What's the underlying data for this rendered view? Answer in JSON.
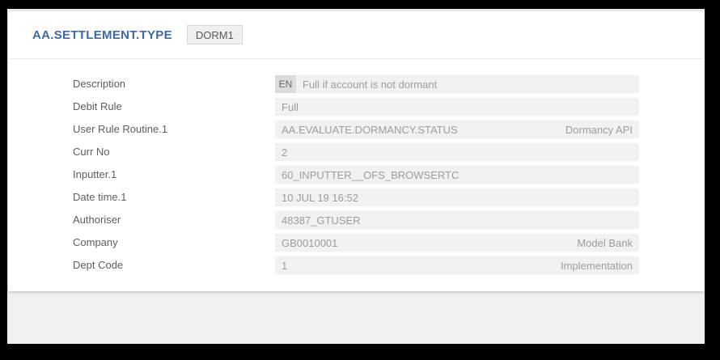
{
  "colors": {
    "frame": "#000000",
    "page_background": "#f0f0f0",
    "card_background": "#ffffff",
    "title_blue": "#3c69a8",
    "field_background": "#f1f1f1",
    "field_text": "#9d9d9d",
    "label_text": "#5e5e5e",
    "language_chip_background": "#dcdcdc"
  },
  "header": {
    "title": "AA.SETTLEMENT.TYPE",
    "record_id": "DORM1"
  },
  "fields": [
    {
      "label": "Description",
      "lang": "EN",
      "value": "Full if account is not dormant",
      "note": ""
    },
    {
      "label": "Debit Rule",
      "value": "Full",
      "note": ""
    },
    {
      "label": "User Rule Routine.1",
      "value": "AA.EVALUATE.DORMANCY.STATUS",
      "note": "Dormancy API"
    },
    {
      "label": "Curr No",
      "value": "2",
      "note": ""
    },
    {
      "label": "Inputter.1",
      "value": "60_INPUTTER__OFS_BROWSERTC",
      "note": ""
    },
    {
      "label": "Date time.1",
      "value": "10 JUL 19 16:52",
      "note": ""
    },
    {
      "label": "Authoriser",
      "value": "48387_GTUSER",
      "note": ""
    },
    {
      "label": "Company",
      "value": "GB0010001",
      "note": "Model Bank"
    },
    {
      "label": "Dept Code",
      "value": "1",
      "note": "Implementation"
    }
  ]
}
